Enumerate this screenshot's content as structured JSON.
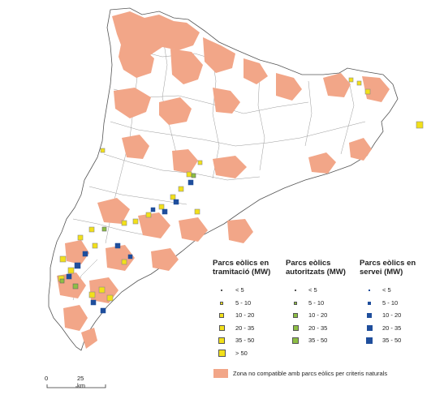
{
  "legend": {
    "col1": {
      "title": "Parcs eòlics en tramitació (MW)",
      "items": [
        {
          "label": "< 5",
          "color": "#f2e019",
          "size": 2
        },
        {
          "label": "5 - 10",
          "color": "#f2e019",
          "size": 4
        },
        {
          "label": "10 - 20",
          "color": "#f2e019",
          "size": 6
        },
        {
          "label": "20 - 35",
          "color": "#f2e019",
          "size": 7
        },
        {
          "label": "35 - 50",
          "color": "#f2e019",
          "size": 8
        },
        {
          "label": "> 50",
          "color": "#f2e019",
          "size": 9
        }
      ]
    },
    "col2": {
      "title": "Parcs eòlics autoritzats (MW)",
      "items": [
        {
          "label": "< 5",
          "color": "#8dbf44",
          "size": 2
        },
        {
          "label": "5 - 10",
          "color": "#8dbf44",
          "size": 4
        },
        {
          "label": "10 - 20",
          "color": "#8dbf44",
          "size": 6
        },
        {
          "label": "20 - 35",
          "color": "#8dbf44",
          "size": 7
        },
        {
          "label": "35 - 50",
          "color": "#8dbf44",
          "size": 8
        }
      ]
    },
    "col3": {
      "title": "Parcs eòlics en servei (MW)",
      "items": [
        {
          "label": "< 5",
          "color": "#1f4e9c",
          "size": 2
        },
        {
          "label": "5 - 10",
          "color": "#1f4e9c",
          "size": 4
        },
        {
          "label": "10 - 20",
          "color": "#1f4e9c",
          "size": 6
        },
        {
          "label": "20 - 35",
          "color": "#1f4e9c",
          "size": 7
        },
        {
          "label": "35 - 50",
          "color": "#1f4e9c",
          "size": 8
        }
      ]
    },
    "zone_label": "Zona no compatible amb parcs eòlics per criteris naturals",
    "zone_color": "#f2a688"
  },
  "scale": {
    "start": "0",
    "end": "25 km"
  }
}
